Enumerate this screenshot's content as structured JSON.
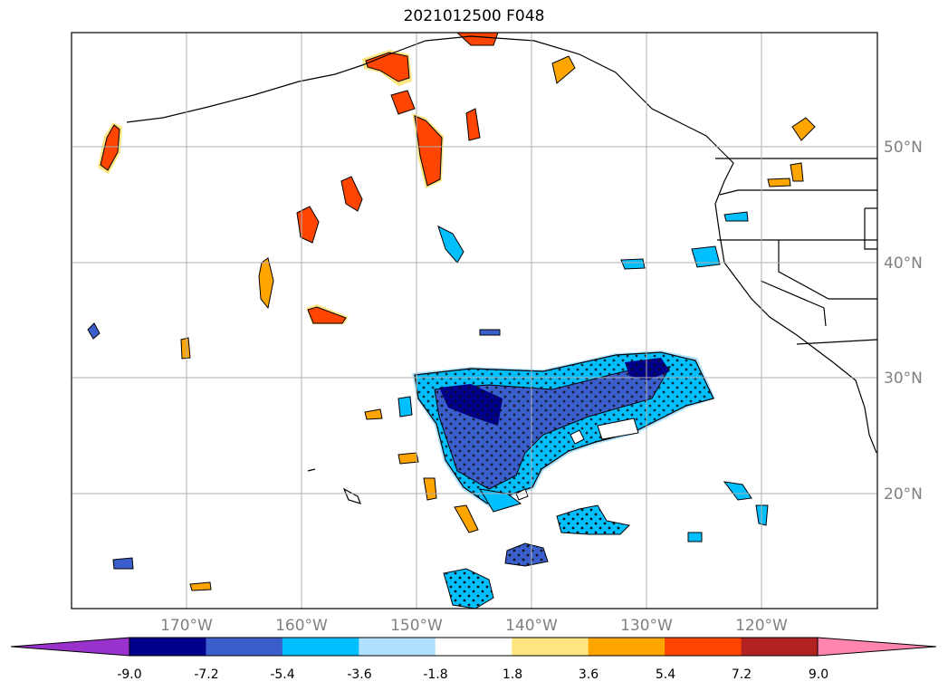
{
  "title": "2021012500 F048",
  "lat_labels": [
    "50°N",
    "40°N",
    "30°N",
    "20°N"
  ],
  "lon_labels": [
    "170°W",
    "160°W",
    "150°W",
    "140°W",
    "130°W",
    "120°W"
  ],
  "colorbar": {
    "ticks": [
      "-9.0",
      "-7.2",
      "-5.4",
      "-3.6",
      "-1.8",
      "1.8",
      "3.6",
      "5.4",
      "7.2",
      "9.0"
    ],
    "colors": [
      "#9932CC",
      "#00008B",
      "#3A5FCD",
      "#00BFFF",
      "#B0E2FF",
      "#FFFFFF",
      "#FFE680",
      "#FFA500",
      "#FF4500",
      "#B22222",
      "#FF85B0"
    ]
  }
}
